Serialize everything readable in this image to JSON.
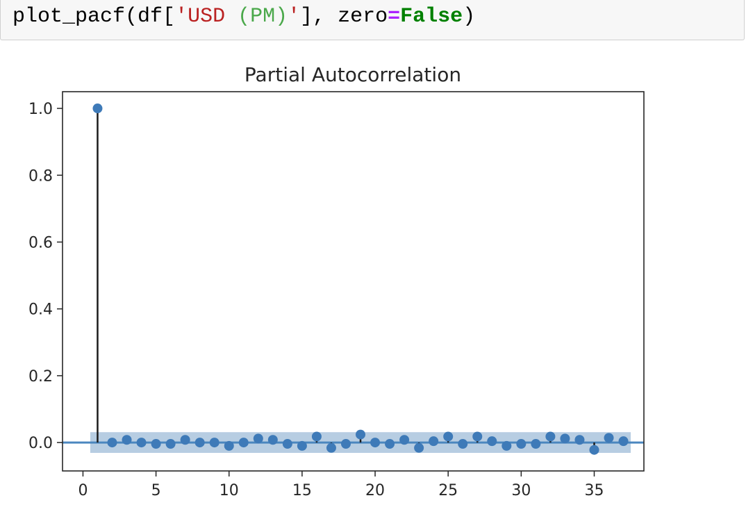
{
  "code_cell": {
    "func": "plot_pacf",
    "open": "(",
    "df": "df[",
    "quote_open": "'",
    "str_usd": "USD ",
    "str_pm": "(PM)",
    "quote_close": "'",
    "after_str": "], ",
    "arg_name": "zero",
    "eq": "=",
    "arg_value": "False",
    "close": ")"
  },
  "colors": {
    "marker": "#3e7ab8",
    "stem": "#1a1a1a",
    "band": "#aac4dd",
    "baseline": "#4b87bf",
    "code_bg": "#f7f7f7",
    "string": "#ba2121",
    "keyword": "#008000",
    "operator": "#aa22ff"
  },
  "chart_data": {
    "type": "scatter",
    "title": "Partial Autocorrelation",
    "xlabel": "",
    "ylabel": "",
    "xlim": [
      -1.4,
      38.4
    ],
    "ylim": [
      -0.085,
      1.05
    ],
    "xticks": [
      0,
      5,
      10,
      15,
      20,
      25,
      30,
      35
    ],
    "xtick_labels": [
      "0",
      "5",
      "10",
      "15",
      "20",
      "25",
      "30",
      "35"
    ],
    "yticks": [
      0.0,
      0.2,
      0.4,
      0.6,
      0.8,
      1.0
    ],
    "ytick_labels": [
      "0.0",
      "0.2",
      "0.4",
      "0.6",
      "0.8",
      "1.0"
    ],
    "grid": false,
    "legend": "none",
    "confidence_band": {
      "x_start": 0.5,
      "x_end": 37.5,
      "lower": -0.031,
      "upper": 0.031
    },
    "baseline_y": 0,
    "x": [
      1,
      2,
      3,
      4,
      5,
      6,
      7,
      8,
      9,
      10,
      11,
      12,
      13,
      14,
      15,
      16,
      17,
      18,
      19,
      20,
      21,
      22,
      23,
      24,
      25,
      26,
      27,
      28,
      29,
      30,
      31,
      32,
      33,
      34,
      35,
      36,
      37
    ],
    "values": [
      1.0,
      0.0,
      0.008,
      0.0,
      -0.004,
      -0.004,
      0.008,
      0.0,
      0.0,
      -0.01,
      0.0,
      0.012,
      0.008,
      -0.004,
      -0.01,
      0.018,
      -0.016,
      -0.004,
      0.024,
      0.0,
      -0.004,
      0.008,
      -0.016,
      0.004,
      0.018,
      -0.004,
      0.018,
      0.004,
      -0.01,
      -0.004,
      -0.004,
      0.018,
      0.012,
      0.008,
      -0.022,
      0.014,
      0.004
    ]
  }
}
